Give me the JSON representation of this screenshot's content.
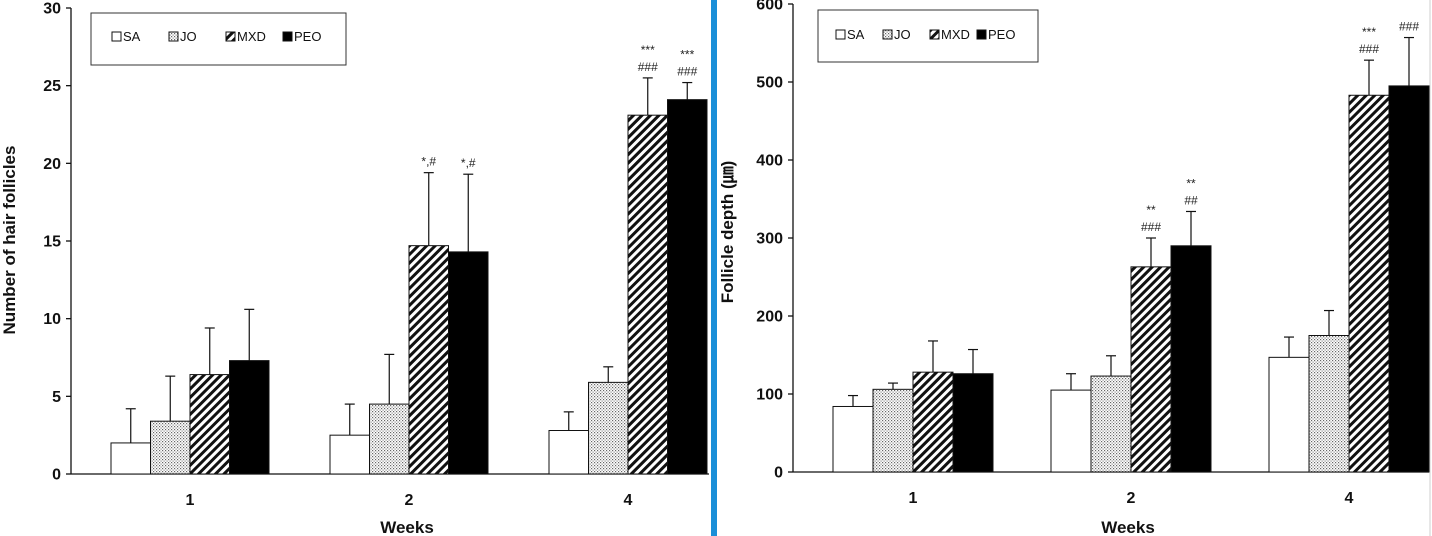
{
  "colors": {
    "divider": "#1a8fd8"
  },
  "chart_data": [
    {
      "type": "bar",
      "xlabel": "Weeks",
      "ylabel": "Number of hair follicles",
      "categories": [
        "1",
        "2",
        "4"
      ],
      "ylim": [
        0,
        30
      ],
      "yticks": [
        "0",
        "5",
        "10",
        "15",
        "20",
        "25",
        "30"
      ],
      "legend": {
        "position": "top-left",
        "entries": [
          "SA",
          "JO",
          "MXD",
          "PEO"
        ]
      },
      "series": [
        {
          "name": "SA",
          "pattern": "open",
          "values": [
            2.0,
            2.5,
            2.8
          ],
          "errors": [
            2.2,
            2.0,
            1.2
          ]
        },
        {
          "name": "JO",
          "pattern": "dotted",
          "values": [
            3.4,
            4.5,
            5.9
          ],
          "errors": [
            2.9,
            3.2,
            1.0
          ]
        },
        {
          "name": "MXD",
          "pattern": "hatched",
          "values": [
            6.4,
            14.7,
            23.1
          ],
          "errors": [
            3.0,
            4.7,
            2.4
          ]
        },
        {
          "name": "PEO",
          "pattern": "solid",
          "values": [
            7.3,
            14.3,
            24.1
          ],
          "errors": [
            3.3,
            5.0,
            1.1
          ]
        }
      ],
      "annotations": [
        {
          "category": "2",
          "series": "MXD",
          "lines": [
            "*,#"
          ]
        },
        {
          "category": "2",
          "series": "PEO",
          "lines": [
            "*,#"
          ]
        },
        {
          "category": "4",
          "series": "MXD",
          "lines": [
            "***",
            "###"
          ]
        },
        {
          "category": "4",
          "series": "PEO",
          "lines": [
            "***",
            "###"
          ]
        }
      ]
    },
    {
      "type": "bar",
      "xlabel": "Weeks",
      "ylabel": "Follicle depth (㎛)",
      "categories": [
        "1",
        "2",
        "4"
      ],
      "ylim": [
        0,
        600
      ],
      "yticks": [
        "0",
        "100",
        "200",
        "300",
        "400",
        "500",
        "600"
      ],
      "legend": {
        "position": "top-left",
        "entries": [
          "SA",
          "JO",
          "MXD",
          "PEO"
        ]
      },
      "series": [
        {
          "name": "SA",
          "pattern": "open",
          "values": [
            84,
            105,
            147
          ],
          "errors": [
            14,
            21,
            26
          ]
        },
        {
          "name": "JO",
          "pattern": "dotted",
          "values": [
            106,
            123,
            175
          ],
          "errors": [
            8,
            26,
            32
          ]
        },
        {
          "name": "MXD",
          "pattern": "hatched",
          "values": [
            128,
            263,
            483
          ],
          "errors": [
            40,
            37,
            45
          ]
        },
        {
          "name": "PEO",
          "pattern": "solid",
          "values": [
            126,
            290,
            495
          ],
          "errors": [
            31,
            44,
            62
          ]
        }
      ],
      "annotations": [
        {
          "category": "2",
          "series": "MXD",
          "lines": [
            "**",
            "###"
          ]
        },
        {
          "category": "2",
          "series": "PEO",
          "lines": [
            "**",
            "##"
          ]
        },
        {
          "category": "4",
          "series": "MXD",
          "lines": [
            "***",
            "###"
          ]
        },
        {
          "category": "4",
          "series": "PEO",
          "lines": [
            "###"
          ]
        }
      ]
    }
  ]
}
